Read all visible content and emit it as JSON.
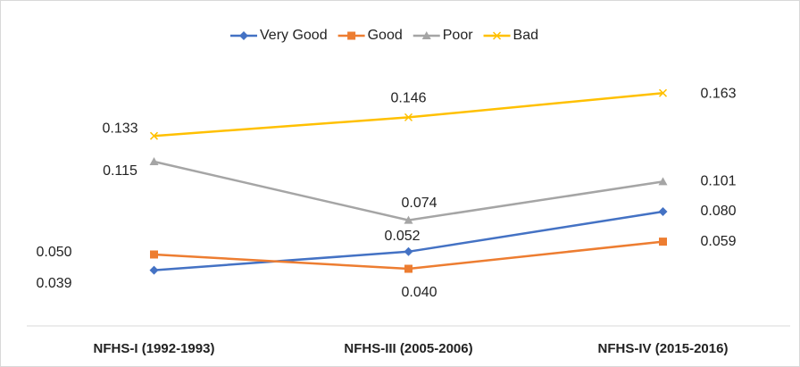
{
  "chart_data": {
    "type": "line",
    "categories": [
      "NFHS-I (1992-1993)",
      "NFHS-III (2005-2006)",
      "NFHS-IV (2015-2016)"
    ],
    "series": [
      {
        "name": "Very Good",
        "color": "#4472c4",
        "marker": "diamond",
        "values": [
          0.039,
          0.052,
          0.08
        ],
        "value_labels": [
          "0.039",
          "0.052",
          "0.080"
        ]
      },
      {
        "name": "Good",
        "color": "#ed7d31",
        "marker": "square",
        "values": [
          0.05,
          0.04,
          0.059
        ],
        "value_labels": [
          "0.050",
          "0.040",
          "0.059"
        ]
      },
      {
        "name": "Poor",
        "color": "#a5a5a5",
        "marker": "triangle",
        "values": [
          0.115,
          0.074,
          0.101
        ],
        "value_labels": [
          "0.115",
          "0.074",
          "0.101"
        ]
      },
      {
        "name": "Bad",
        "color": "#ffc000",
        "marker": "x",
        "values": [
          0.133,
          0.146,
          0.163
        ],
        "value_labels": [
          "0.133",
          "0.146",
          "0.163"
        ]
      }
    ],
    "ylim": [
      0,
      0.18
    ],
    "grid": false,
    "legend": "top"
  }
}
